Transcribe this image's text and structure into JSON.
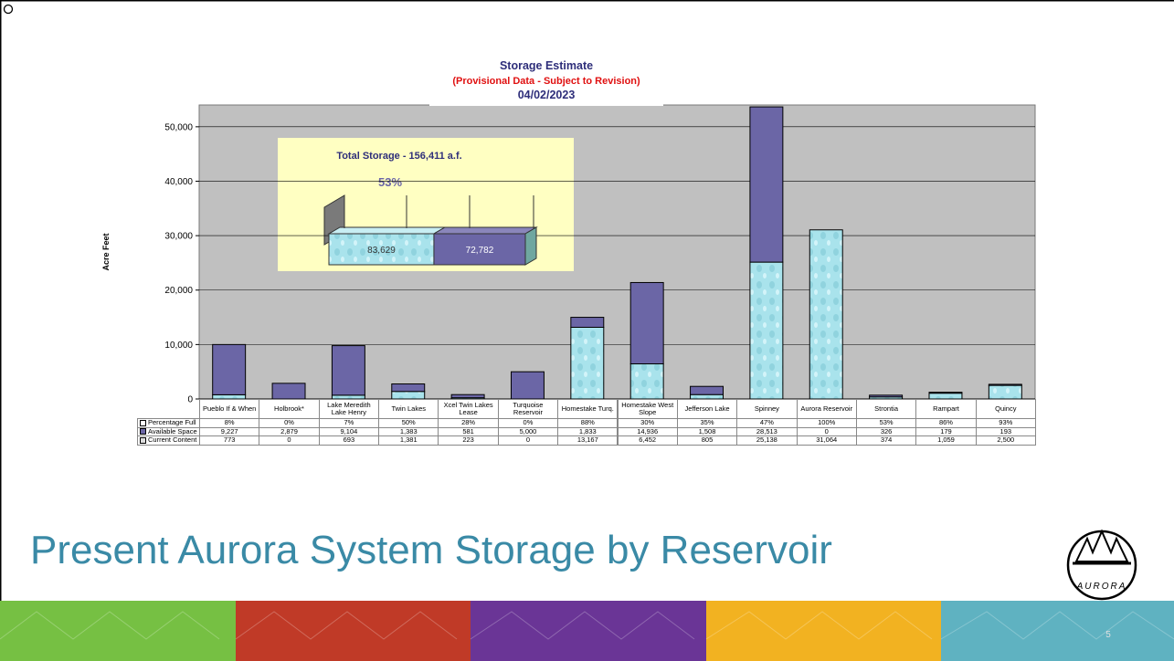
{
  "chart_data": {
    "type": "stacked-bar",
    "title": "Storage Estimate",
    "subtitle": "(Provisional Data - Subject to Revision)",
    "date": "04/02/2023",
    "y_label": "Acre Feet",
    "categories": [
      "Pueblo If & When",
      "Holbrook*",
      "Lake Meredith Lake Henry",
      "Twin Lakes",
      "Xcel Twin Lakes Lease",
      "Turquoise Reservoir",
      "Homestake Turq.",
      "Homestake West Slope",
      "Jefferson Lake",
      "Spinney",
      "Aurora Reservoir",
      "Strontia",
      "Rampart",
      "Quincy"
    ],
    "percentage_full": {
      "name": "Percentage Full",
      "values": [
        8,
        0,
        7,
        50,
        28,
        0,
        88,
        30,
        35,
        47,
        100,
        53,
        86,
        93
      ],
      "value_labels": [
        "8%",
        "0%",
        "7%",
        "50%",
        "28%",
        "0%",
        "88%",
        "30%",
        "35%",
        "47%",
        "100%",
        "53%",
        "86%",
        "93%"
      ]
    },
    "series": [
      {
        "name": "Current Content",
        "color": "#a9e3ec",
        "values": [
          773,
          0,
          693,
          1381,
          223,
          0,
          13167,
          6452,
          805,
          25138,
          31064,
          374,
          1059,
          2500
        ],
        "value_labels": [
          "773",
          "0",
          "693",
          "1,381",
          "223",
          "0",
          "13,167",
          "6,452",
          "805",
          "25,138",
          "31,064",
          "374",
          "1,059",
          "2,500"
        ]
      },
      {
        "name": "Available Space",
        "color": "#6b66a6",
        "values": [
          9227,
          2879,
          9104,
          1383,
          581,
          5000,
          1833,
          14936,
          1508,
          28513,
          0,
          326,
          179,
          193
        ],
        "value_labels": [
          "9,227",
          "2,879",
          "9,104",
          "1,383",
          "581",
          "5,000",
          "1,833",
          "14,936",
          "1,508",
          "28,513",
          "0",
          "326",
          "179",
          "193"
        ]
      }
    ],
    "ylim": [
      0,
      54000
    ],
    "yticks": [
      0,
      {
        "value": 10000,
        "label": "10,000"
      },
      {
        "value": 20000,
        "label": "20,000"
      },
      {
        "value": 30000,
        "label": "30,000"
      },
      {
        "value": 40000,
        "label": "40,000"
      },
      {
        "value": 50000,
        "label": "50,000"
      }
    ],
    "grid": true,
    "inset": {
      "title": "Total Storage - 156,411 a.f.",
      "percent": {
        "value": 53,
        "label": "53%"
      },
      "values": [
        83629,
        72782
      ],
      "value_labels": [
        "83,629",
        "72,782"
      ]
    }
  },
  "slide": {
    "title": "Present Aurora System Storage by Reservoir",
    "page": "5",
    "logo": "AURORA"
  }
}
